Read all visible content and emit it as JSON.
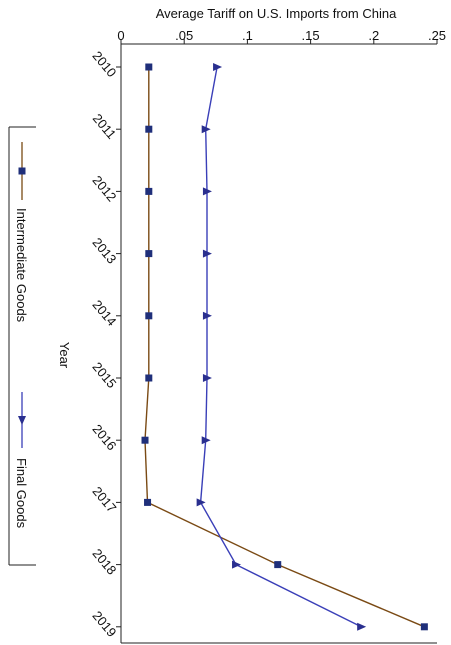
{
  "chart_data": {
    "type": "line",
    "orientation": "vertical-category",
    "title": "",
    "xlabel": "Average Tariff on U.S. Imports from China",
    "ylabel": "Year",
    "xlim": [
      0,
      0.25
    ],
    "x_ticks": [
      0,
      0.05,
      0.1,
      0.15,
      0.2,
      0.25
    ],
    "x_tick_labels": [
      "0",
      ".05",
      ".1",
      ".15",
      ".2",
      ".25"
    ],
    "categories": [
      "2010",
      "2011",
      "2012",
      "2013",
      "2014",
      "2015",
      "2016",
      "2017",
      "2018",
      "2019"
    ],
    "series": [
      {
        "name": "Intermediate Goods",
        "marker": "square",
        "line_color": "#7a4a14",
        "marker_color": "#1f2f7a",
        "values": [
          0.022,
          0.022,
          0.022,
          0.022,
          0.022,
          0.022,
          0.019,
          0.021,
          0.124,
          0.24
        ]
      },
      {
        "name": "Final Goods",
        "marker": "triangle",
        "line_color": "#3a3fb8",
        "marker_color": "#2a2f8f",
        "values": [
          0.076,
          0.067,
          0.068,
          0.068,
          0.068,
          0.068,
          0.067,
          0.063,
          0.091,
          0.19
        ]
      }
    ],
    "grid": false,
    "legend_position": "left"
  }
}
